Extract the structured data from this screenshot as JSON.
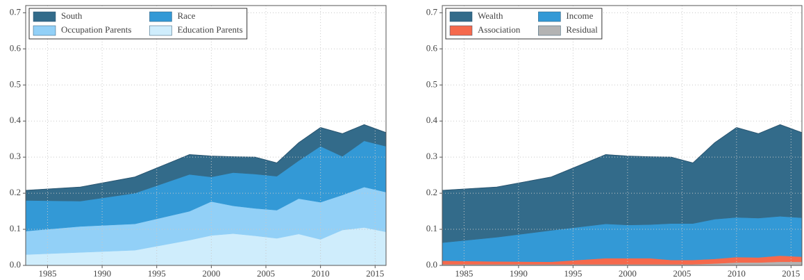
{
  "chart_data": [
    {
      "type": "stacked-area",
      "x": [
        1983,
        1988,
        1993,
        1998,
        2000,
        2002,
        2004,
        2006,
        2008,
        2010,
        2012,
        2014,
        2016
      ],
      "series": [
        {
          "name": "South",
          "color": "#336b8a",
          "values": [
            0.028,
            0.039,
            0.045,
            0.055,
            0.058,
            0.044,
            0.047,
            0.037,
            0.05,
            0.052,
            0.063,
            0.045,
            0.038
          ]
        },
        {
          "name": "Race",
          "color": "#3399d6",
          "values": [
            0.085,
            0.07,
            0.085,
            0.102,
            0.068,
            0.092,
            0.095,
            0.094,
            0.105,
            0.155,
            0.107,
            0.128,
            0.127
          ]
        },
        {
          "name": "Occupation Parents",
          "color": "#92d0f7",
          "values": [
            0.065,
            0.072,
            0.073,
            0.08,
            0.094,
            0.077,
            0.076,
            0.078,
            0.098,
            0.103,
            0.097,
            0.112,
            0.11
          ]
        },
        {
          "name": "Education Parents",
          "color": "#cfedfc",
          "values": [
            0.03,
            0.036,
            0.042,
            0.07,
            0.083,
            0.088,
            0.082,
            0.075,
            0.087,
            0.072,
            0.098,
            0.105,
            0.093
          ]
        }
      ],
      "xlim": [
        1983,
        2016
      ],
      "xticks": [
        1985,
        1990,
        1995,
        2000,
        2005,
        2010,
        2015
      ],
      "ylim": [
        0,
        0.72
      ],
      "yticks": [
        {
          "value": 0,
          "label": "0.0"
        },
        0.1,
        0.2,
        0.3,
        0.4,
        0.5,
        0.6,
        0.7
      ],
      "grid": true,
      "legend": "upper left"
    },
    {
      "type": "stacked-area",
      "x": [
        1983,
        1988,
        1993,
        1998,
        2000,
        2002,
        2004,
        2006,
        2008,
        2010,
        2012,
        2014,
        2016
      ],
      "series": [
        {
          "name": "Wealth",
          "color": "#336b8a",
          "values": [
            0.145,
            0.139,
            0.148,
            0.192,
            0.191,
            0.188,
            0.184,
            0.168,
            0.212,
            0.249,
            0.234,
            0.254,
            0.236
          ]
        },
        {
          "name": "Income",
          "color": "#3399d6",
          "values": [
            0.05,
            0.067,
            0.087,
            0.095,
            0.092,
            0.093,
            0.101,
            0.101,
            0.11,
            0.11,
            0.109,
            0.109,
            0.108
          ]
        },
        {
          "name": "Association",
          "color": "#f5694c",
          "values": [
            0.01,
            0.008,
            0.007,
            0.017,
            0.017,
            0.017,
            0.012,
            0.012,
            0.013,
            0.015,
            0.014,
            0.017,
            0.014
          ]
        },
        {
          "name": "Residual",
          "color": "#b3b3b3",
          "values": [
            0.003,
            0.003,
            0.003,
            0.003,
            0.003,
            0.003,
            0.003,
            0.003,
            0.005,
            0.008,
            0.008,
            0.01,
            0.01
          ]
        }
      ],
      "xlim": [
        1983,
        2016
      ],
      "xticks": [
        1985,
        1990,
        1995,
        2000,
        2005,
        2010,
        2015
      ],
      "ylim": [
        0,
        0.72
      ],
      "yticks": [
        {
          "value": 0,
          "label": "0.0"
        },
        0.1,
        0.2,
        0.3,
        0.4,
        0.5,
        0.6,
        0.7
      ],
      "grid": true,
      "legend": "upper left"
    }
  ]
}
